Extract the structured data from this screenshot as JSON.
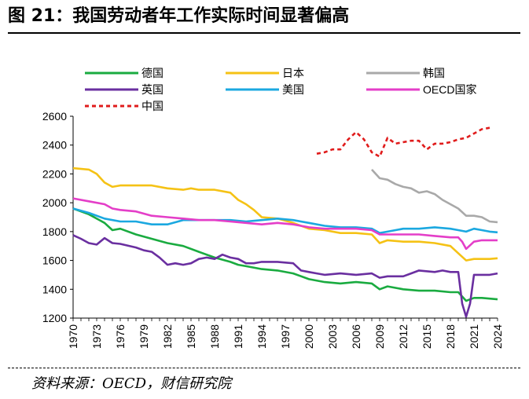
{
  "figure": {
    "title": "图 21：我国劳动者年工作实际时间显著偏高",
    "source": "资料来源：OECD，财信研究院"
  },
  "chart_data": {
    "type": "line",
    "xlim": [
      1970,
      2024
    ],
    "ylim": [
      1200,
      2600
    ],
    "yticks": [
      1200,
      1400,
      1600,
      1800,
      2000,
      2200,
      2400,
      2600
    ],
    "xticks": [
      1970,
      1973,
      1976,
      1979,
      1982,
      1985,
      1988,
      1991,
      1994,
      1997,
      2000,
      2003,
      2006,
      2009,
      2012,
      2015,
      2018,
      2021,
      2024
    ],
    "grid": false,
    "legend_position": "top",
    "series": [
      {
        "name": "德国",
        "color": "#1aab40",
        "dashed": false,
        "x": [
          1970,
          1972,
          1974,
          1975,
          1976,
          1978,
          1980,
          1982,
          1984,
          1986,
          1988,
          1990,
          1991,
          1992,
          1994,
          1996,
          1998,
          2000,
          2002,
          2004,
          2006,
          2008,
          2009,
          2010,
          2012,
          2014,
          2016,
          2018,
          2019,
          2020,
          2021,
          2022,
          2023,
          2024
        ],
        "y": [
          1960,
          1920,
          1860,
          1810,
          1820,
          1780,
          1750,
          1720,
          1700,
          1660,
          1620,
          1590,
          1570,
          1560,
          1540,
          1530,
          1510,
          1470,
          1450,
          1440,
          1450,
          1440,
          1400,
          1420,
          1400,
          1390,
          1390,
          1380,
          1380,
          1320,
          1340,
          1340,
          1335,
          1330
        ]
      },
      {
        "name": "日本",
        "color": "#f5c215",
        "dashed": false,
        "x": [
          1970,
          1972,
          1973,
          1974,
          1975,
          1976,
          1978,
          1980,
          1982,
          1984,
          1985,
          1986,
          1988,
          1990,
          1991,
          1992,
          1993,
          1994,
          1996,
          1998,
          2000,
          2002,
          2004,
          2006,
          2008,
          2009,
          2010,
          2012,
          2014,
          2016,
          2018,
          2019,
          2020,
          2021,
          2022,
          2023,
          2024
        ],
        "y": [
          2240,
          2230,
          2200,
          2140,
          2110,
          2120,
          2120,
          2120,
          2100,
          2090,
          2100,
          2090,
          2090,
          2070,
          2020,
          1990,
          1950,
          1900,
          1890,
          1860,
          1820,
          1810,
          1790,
          1790,
          1780,
          1720,
          1740,
          1730,
          1730,
          1720,
          1700,
          1650,
          1600,
          1610,
          1610,
          1610,
          1615
        ]
      },
      {
        "name": "韩国",
        "color": "#a9a9a9",
        "dashed": false,
        "x": [
          2008,
          2009,
          2010,
          2011,
          2012,
          2013,
          2014,
          2015,
          2016,
          2017,
          2018,
          2019,
          2020,
          2021,
          2022,
          2023,
          2024
        ],
        "y": [
          2230,
          2170,
          2160,
          2130,
          2110,
          2100,
          2070,
          2080,
          2060,
          2020,
          1990,
          1960,
          1910,
          1910,
          1900,
          1870,
          1865
        ]
      },
      {
        "name": "英国",
        "color": "#6a2fa0",
        "dashed": false,
        "x": [
          1970,
          1971,
          1972,
          1973,
          1974,
          1975,
          1976,
          1978,
          1979,
          1980,
          1981,
          1982,
          1983,
          1984,
          1985,
          1986,
          1987,
          1988,
          1989,
          1990,
          1991,
          1992,
          1993,
          1994,
          1996,
          1998,
          1999,
          2000,
          2001,
          2002,
          2004,
          2006,
          2008,
          2009,
          2010,
          2012,
          2013,
          2014,
          2016,
          2017,
          2018,
          2019,
          2019.5,
          2020,
          2020.5,
          2021,
          2022,
          2023,
          2024
        ],
        "y": [
          1775,
          1750,
          1720,
          1710,
          1755,
          1720,
          1715,
          1690,
          1670,
          1660,
          1620,
          1570,
          1580,
          1570,
          1580,
          1610,
          1620,
          1610,
          1640,
          1620,
          1610,
          1580,
          1580,
          1590,
          1590,
          1580,
          1530,
          1520,
          1510,
          1500,
          1510,
          1500,
          1510,
          1480,
          1490,
          1490,
          1510,
          1530,
          1520,
          1530,
          1520,
          1520,
          1300,
          1210,
          1300,
          1500,
          1500,
          1500,
          1510
        ]
      },
      {
        "name": "美国",
        "color": "#1ba8e0",
        "dashed": false,
        "x": [
          1970,
          1972,
          1974,
          1976,
          1978,
          1980,
          1982,
          1984,
          1986,
          1988,
          1990,
          1992,
          1994,
          1996,
          1998,
          2000,
          2002,
          2004,
          2006,
          2008,
          2009,
          2010,
          2012,
          2014,
          2016,
          2018,
          2019,
          2020,
          2021,
          2022,
          2023,
          2024
        ],
        "y": [
          1960,
          1930,
          1890,
          1870,
          1870,
          1850,
          1850,
          1880,
          1880,
          1880,
          1880,
          1870,
          1880,
          1890,
          1880,
          1860,
          1840,
          1830,
          1830,
          1820,
          1790,
          1800,
          1820,
          1820,
          1830,
          1820,
          1810,
          1800,
          1820,
          1810,
          1800,
          1795
        ]
      },
      {
        "name": "OECD国家",
        "color": "#e43ec8",
        "dashed": false,
        "x": [
          1970,
          1972,
          1974,
          1975,
          1976,
          1978,
          1980,
          1982,
          1984,
          1986,
          1988,
          1990,
          1992,
          1994,
          1996,
          1998,
          2000,
          2002,
          2004,
          2006,
          2008,
          2009,
          2010,
          2012,
          2014,
          2016,
          2018,
          2019,
          2019.5,
          2020,
          2021,
          2022,
          2023,
          2024
        ],
        "y": [
          2030,
          2010,
          1990,
          1960,
          1950,
          1940,
          1910,
          1900,
          1890,
          1880,
          1880,
          1870,
          1860,
          1850,
          1860,
          1850,
          1830,
          1820,
          1820,
          1820,
          1810,
          1780,
          1780,
          1780,
          1780,
          1770,
          1760,
          1760,
          1730,
          1680,
          1730,
          1740,
          1740,
          1740
        ]
      },
      {
        "name": "中国",
        "color": "#e01c1c",
        "dashed": true,
        "x": [
          2001,
          2002,
          2003,
          2004,
          2005,
          2006,
          2007,
          2008,
          2009,
          2010,
          2011,
          2012,
          2013,
          2014,
          2015,
          2016,
          2017,
          2018,
          2019,
          2020,
          2021,
          2022,
          2023
        ],
        "y": [
          2340,
          2350,
          2370,
          2370,
          2440,
          2490,
          2440,
          2350,
          2320,
          2450,
          2410,
          2420,
          2430,
          2430,
          2370,
          2410,
          2410,
          2420,
          2440,
          2450,
          2480,
          2510,
          2520
        ]
      }
    ]
  }
}
